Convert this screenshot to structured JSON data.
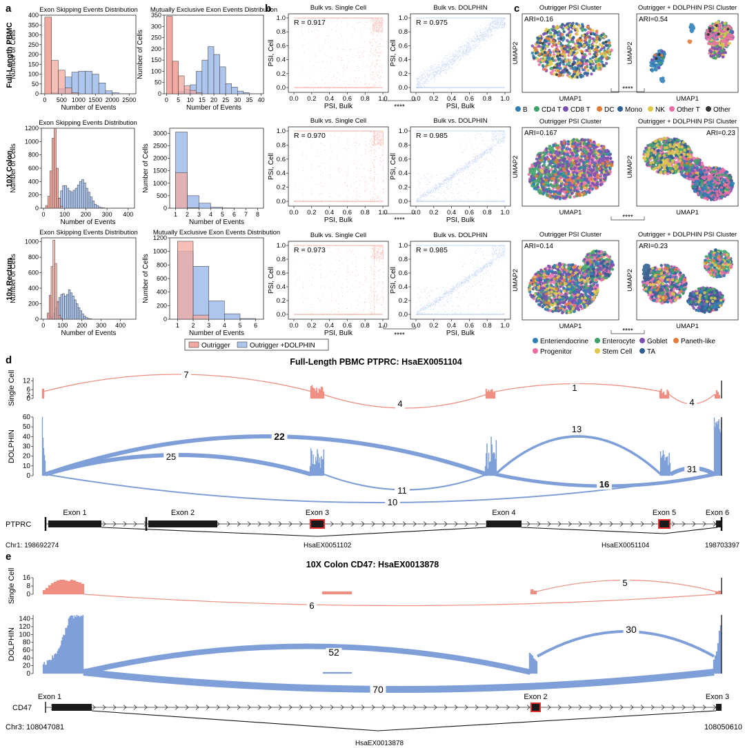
{
  "panel_letters": [
    "a",
    "b",
    "c",
    "d",
    "e"
  ],
  "row_labels": [
    "Full-Length PBMC",
    "10X Colon",
    "10x Rectum"
  ],
  "hist_titles": {
    "es": "Exon Skipping Events Distribution",
    "mx": "Mutually Exclusive Exon Events Distribution"
  },
  "hist_axis": {
    "ylabel": "Number of Cells",
    "xlabel": "Number of Events"
  },
  "legend_a": {
    "outrigger": "Outrigger",
    "dolphin": "Outrigger +DOLPHIN"
  },
  "colors": {
    "outrigger": "#f2aaa0",
    "dolphin": "#aec6ee",
    "overlap": "#d2b1bf",
    "sashimi_single": "#ee8f82",
    "sashimi_dolphin": "#7f9fd8",
    "exon_fill": "#1a1a1a",
    "highlight": "#e8312d"
  },
  "scatter_titles": {
    "bulk_sc": "Bulk vs. Single Cell",
    "bulk_dolphin": "Bulk vs. DOLPHIN"
  },
  "scatter_axis": {
    "xlabel": "PSI, Bulk",
    "ylabel": "PSI, Cell"
  },
  "significance": "****",
  "umap_titles": {
    "outrigger": "Outrigger PSI Cluster",
    "dolphin": "Outrigger + DOLPHIN PSI Cluster"
  },
  "umap_axis": {
    "x": "UMAP1",
    "y": "UMAP2"
  },
  "chart_data": [
    {
      "type": "bar",
      "panel": "a",
      "row": 0,
      "title": "Exon Skipping Events Distribution",
      "xlabel": "Number of Events",
      "ylabel": "Number of Cells",
      "xlim": [
        -100,
        2700
      ],
      "ylim": [
        0,
        400
      ],
      "xticks": [
        "0",
        "500",
        "1000",
        "1500",
        "2000",
        "2500"
      ],
      "yticks": [
        "0",
        "50",
        "100",
        "150",
        "200",
        "250",
        "300",
        "350",
        "400"
      ],
      "bin_start": 0,
      "bin_width": 200,
      "series": [
        {
          "name": "Outrigger",
          "values": [
            390,
            170,
            120,
            30,
            5
          ]
        },
        {
          "name": "Outrigger +DOLPHIN",
          "values": [
            0,
            5,
            25,
            85,
            110,
            115,
            115,
            100,
            55,
            15,
            5
          ]
        }
      ]
    },
    {
      "type": "bar",
      "panel": "a",
      "row": 0,
      "title": "Mutually Exclusive Exon Events Distribution",
      "xlabel": "Number of Events",
      "ylabel": "Number of Cells",
      "xlim": [
        -1,
        41
      ],
      "ylim": [
        0,
        350
      ],
      "xticks": [
        "0",
        "5",
        "10",
        "15",
        "20",
        "25",
        "30",
        "35",
        "40"
      ],
      "yticks": [
        "0",
        "50",
        "100",
        "150",
        "200",
        "250",
        "300",
        "350"
      ],
      "bin_start": 0,
      "bin_width": 2.5,
      "series": [
        {
          "name": "Outrigger",
          "values": [
            345,
            145,
            80,
            35,
            15,
            5
          ]
        },
        {
          "name": "Outrigger +DOLPHIN",
          "values": [
            0,
            0,
            10,
            20,
            40,
            100,
            150,
            210,
            175,
            120,
            45,
            30,
            12,
            5
          ]
        }
      ]
    },
    {
      "type": "bar",
      "panel": "a",
      "row": 1,
      "title": "Exon Skipping Events Distribution",
      "xlabel": "Number of Events",
      "ylabel": "Number of Cells",
      "xlim": [
        -10,
        430
      ],
      "ylim": [
        0,
        1200
      ],
      "xticks": [
        "0",
        "100",
        "200",
        "300",
        "400"
      ],
      "yticks": [
        "0",
        "200",
        "400",
        "600",
        "800",
        "1000",
        "1200"
      ],
      "bin_start": 10,
      "bin_width": 10,
      "series": [
        {
          "name": "Outrigger",
          "values": [
            40,
            180,
            560,
            1050,
            1200,
            600,
            150,
            30
          ]
        },
        {
          "name": "Outrigger +DOLPHIN",
          "values": [
            0,
            0,
            0,
            0,
            0,
            0,
            150,
            260,
            340,
            340,
            300,
            260,
            240,
            270,
            300,
            350,
            400,
            430,
            380,
            300,
            240,
            170,
            110,
            60,
            40,
            20,
            10,
            5
          ]
        }
      ]
    },
    {
      "type": "bar",
      "panel": "a",
      "row": 1,
      "title": "",
      "xlabel": "Number of Events",
      "ylabel": "Number of Cells",
      "xlim": [
        0.5,
        8.5
      ],
      "ylim": [
        0,
        3200
      ],
      "xticks": [
        "1",
        "2",
        "3",
        "4",
        "5",
        "6",
        "7",
        "8"
      ],
      "yticks": [
        "0",
        "500",
        "1000",
        "1500",
        "2000",
        "2500",
        "3000"
      ],
      "bin_start": 1,
      "bin_width": 1,
      "series": [
        {
          "name": "Outrigger",
          "values": [
            1420,
            20
          ]
        },
        {
          "name": "Outrigger +DOLPHIN",
          "values": [
            3050,
            500,
            200,
            40,
            10
          ]
        }
      ]
    },
    {
      "type": "bar",
      "panel": "a",
      "row": 2,
      "title": "Exon Skipping Events Distribution",
      "xlabel": "Number of Events",
      "ylabel": "Number of Cells",
      "xlim": [
        -10,
        480
      ],
      "ylim": [
        0,
        1050
      ],
      "xticks": [
        "0",
        "100",
        "200",
        "300",
        "400"
      ],
      "yticks": [
        "0",
        "200",
        "400",
        "600",
        "800",
        "1000"
      ],
      "bin_start": 20,
      "bin_width": 10,
      "series": [
        {
          "name": "Outrigger",
          "values": [
            80,
            310,
            680,
            1020,
            720,
            230,
            50,
            10
          ]
        },
        {
          "name": "Outrigger +DOLPHIN",
          "values": [
            0,
            0,
            30,
            80,
            150,
            220,
            280,
            320,
            330,
            300,
            320,
            380,
            340,
            300,
            250,
            200,
            150,
            110,
            70,
            40,
            20,
            10,
            5
          ]
        }
      ]
    },
    {
      "type": "bar",
      "panel": "a",
      "row": 2,
      "title": "Mutually Exclusive Exon Events Distribution",
      "xlabel": "Number of Events",
      "ylabel": "Number of Cells",
      "xlim": [
        0.5,
        6.5
      ],
      "ylim": [
        0,
        1200
      ],
      "xticks": [
        "1",
        "2",
        "3",
        "4",
        "5",
        "6"
      ],
      "yticks": [
        "0",
        "200",
        "400",
        "600",
        "800",
        "1000",
        "1200"
      ],
      "bin_start": 1,
      "bin_width": 1,
      "series": [
        {
          "name": "Outrigger",
          "values": [
            1150,
            60
          ]
        },
        {
          "name": "Outrigger +DOLPHIN",
          "values": [
            1000,
            780,
            270,
            80,
            10
          ]
        }
      ]
    },
    {
      "type": "scatter",
      "panel": "b",
      "row": 0,
      "title": "Bulk vs. Single Cell",
      "xlabel": "PSI, Bulk",
      "ylabel": "PSI, Cell",
      "xlim": [
        0,
        1
      ],
      "ylim": [
        0,
        1
      ],
      "annotation": "R = 0.917",
      "series": [
        {
          "name": "",
          "color": "#f2aaa0"
        }
      ]
    },
    {
      "type": "scatter",
      "panel": "b",
      "row": 0,
      "title": "Bulk vs. DOLPHIN",
      "xlabel": "PSI, Bulk",
      "ylabel": "PSI, Cell",
      "xlim": [
        0,
        1
      ],
      "ylim": [
        0,
        1
      ],
      "annotation": "R = 0.975",
      "series": [
        {
          "name": "",
          "color": "#aec6ee"
        }
      ]
    },
    {
      "type": "scatter",
      "panel": "b",
      "row": 1,
      "title": "Bulk vs. Single Cell",
      "xlabel": "PSI, Bulk",
      "ylabel": "PSI, Cell",
      "xlim": [
        0,
        1
      ],
      "ylim": [
        0,
        1
      ],
      "annotation": "R = 0.970",
      "series": [
        {
          "name": "",
          "color": "#f2aaa0"
        }
      ]
    },
    {
      "type": "scatter",
      "panel": "b",
      "row": 1,
      "title": "Bulk vs. DOLPHIN",
      "xlabel": "PSI, Bulk",
      "ylabel": "PSI, Cell",
      "xlim": [
        0,
        1
      ],
      "ylim": [
        0,
        1
      ],
      "annotation": "R = 0.985",
      "series": [
        {
          "name": "",
          "color": "#aec6ee"
        }
      ]
    },
    {
      "type": "scatter",
      "panel": "b",
      "row": 2,
      "title": "Bulk vs. Single Cell",
      "xlabel": "PSI, Bulk",
      "ylabel": "PSI, Cell",
      "xlim": [
        0,
        1
      ],
      "ylim": [
        0,
        1
      ],
      "annotation": "R = 0.973",
      "series": [
        {
          "name": "",
          "color": "#f2aaa0"
        }
      ]
    },
    {
      "type": "scatter",
      "panel": "b",
      "row": 2,
      "title": "Bulk vs. DOLPHIN",
      "xlabel": "PSI, Bulk",
      "ylabel": "PSI, Cell",
      "xlim": [
        0,
        1
      ],
      "ylim": [
        0,
        1
      ],
      "annotation": "R = 0.985",
      "series": [
        {
          "name": "",
          "color": "#aec6ee"
        }
      ]
    },
    {
      "type": "scatter",
      "panel": "c",
      "row": 0,
      "title": "Outrigger PSI Cluster",
      "xlabel": "UMAP1",
      "ylabel": "UMAP2",
      "annotation": "ARI=0.16",
      "legend": [
        "B",
        "CD4 T",
        "CD8 T",
        "DC",
        "Mono",
        "NK",
        "Other T",
        "Other"
      ],
      "legend_colors": [
        "#2f7fb6",
        "#3da36a",
        "#7a4fb0",
        "#e37b3a",
        "#2f5f8f",
        "#e0c94a",
        "#ea6ea8",
        "#333333"
      ]
    },
    {
      "type": "scatter",
      "panel": "c",
      "row": 0,
      "title": "Outrigger + DOLPHIN PSI Cluster",
      "xlabel": "UMAP1",
      "ylabel": "UMAP2",
      "annotation": "ARI=0.54"
    },
    {
      "type": "scatter",
      "panel": "c",
      "row": 1,
      "title": "Outrigger PSI Cluster",
      "xlabel": "UMAP1",
      "ylabel": "UMAP2",
      "annotation": "ARI=0.167"
    },
    {
      "type": "scatter",
      "panel": "c",
      "row": 1,
      "title": "Outrigger + DOLPHIN PSI Cluster",
      "xlabel": "UMAP1",
      "ylabel": "UMAP2",
      "annotation": "ARI=0.23"
    },
    {
      "type": "scatter",
      "panel": "c",
      "row": 2,
      "title": "Outrigger PSI Cluster",
      "xlabel": "UMAP1",
      "ylabel": "UMAP2",
      "annotation": "ARI=0.14",
      "legend": [
        "Enteriendocrine",
        "Enterocyte",
        "Goblet",
        "Paneth-like",
        "Progenitor",
        "Stem Cell",
        "TA"
      ],
      "legend_colors": [
        "#2f7fb6",
        "#3da36a",
        "#7a4fb0",
        "#e37b3a",
        "#ea6ea8",
        "#e0c94a",
        "#2f5f8f"
      ]
    },
    {
      "type": "scatter",
      "panel": "c",
      "row": 2,
      "title": "Outrigger + DOLPHIN PSI Cluster",
      "xlabel": "UMAP1",
      "ylabel": "UMAP2",
      "annotation": "ARI=0.23"
    },
    {
      "type": "sashimi",
      "panel": "d",
      "title": "Full-Length PBMC PTPRC: HsaEX0051104",
      "gene": "PTPRC",
      "start": "Chr1: 198692274",
      "end": "198703397",
      "exons": [
        "Exon 1",
        "Exon 2",
        "Exon 3",
        "Exon 4",
        "Exon 5",
        "Exon 6"
      ],
      "events": [
        "HsaEX0051102",
        "HsaEX0051104"
      ],
      "single_cell": {
        "ylabel": "Single Cell",
        "yticks": [
          "0",
          "2",
          "6",
          "12"
        ],
        "junctions": [
          "7",
          "4",
          "1",
          "4"
        ]
      },
      "dolphin": {
        "ylabel": "DOLPHIN",
        "yticks": [
          "0",
          "10",
          "20",
          "30",
          "40",
          "50",
          "60"
        ],
        "junctions": [
          "22",
          "25",
          "13",
          "31",
          "11",
          "16",
          "10"
        ]
      }
    },
    {
      "type": "sashimi",
      "panel": "e",
      "title": "10X Colon CD47: HsaEX0013878",
      "gene": "CD47",
      "start": "Chr3: 108047081",
      "end": "108050610",
      "exons": [
        "Exon 1",
        "Exon 2",
        "Exon 3"
      ],
      "events": [
        "HsaEX0013878"
      ],
      "single_cell": {
        "ylabel": "Single Cell",
        "yticks": [
          "0",
          "8",
          "16"
        ],
        "junctions": [
          "5",
          "6"
        ]
      },
      "dolphin": {
        "ylabel": "DOLPHIN",
        "yticks": [
          "0",
          "20",
          "40",
          "60",
          "80",
          "100",
          "120",
          "140"
        ],
        "junctions": [
          "30",
          "52",
          "70"
        ]
      }
    }
  ]
}
